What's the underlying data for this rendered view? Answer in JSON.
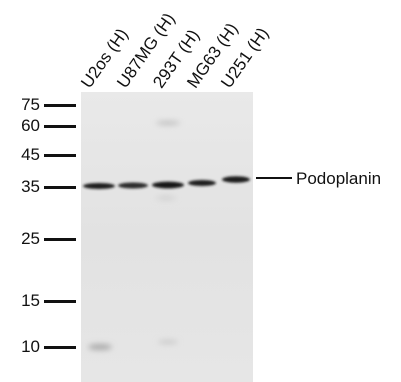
{
  "lanes": [
    {
      "label": "U2os (H)"
    },
    {
      "label": "U87MG (H)"
    },
    {
      "label": "293T (H)"
    },
    {
      "label": "MG63 (H)"
    },
    {
      "label": "U251 (H)"
    }
  ],
  "markers": [
    {
      "label": "75",
      "kda": 75
    },
    {
      "label": "60",
      "kda": 60
    },
    {
      "label": "45",
      "kda": 45
    },
    {
      "label": "35",
      "kda": 35
    },
    {
      "label": "25",
      "kda": 25
    },
    {
      "label": "15",
      "kda": 15
    },
    {
      "label": "10",
      "kda": 10
    }
  ],
  "target_band": {
    "label": "Podoplanin"
  },
  "colors": {
    "membrane": "#e4e4e4",
    "band": "#1a1a1a",
    "ink": "#111111"
  }
}
